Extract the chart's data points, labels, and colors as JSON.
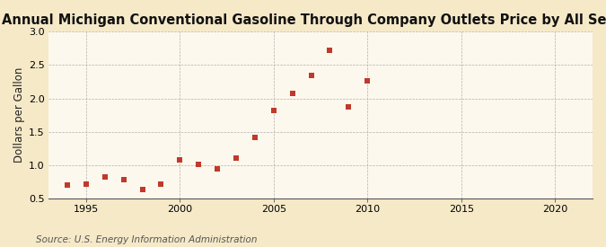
{
  "title": "Annual Michigan Conventional Gasoline Through Company Outlets Price by All Sellers",
  "ylabel": "Dollars per Gallon",
  "source": "Source: U.S. Energy Information Administration",
  "years": [
    1994,
    1995,
    1996,
    1997,
    1998,
    1999,
    2000,
    2001,
    2002,
    2003,
    2004,
    2005,
    2006,
    2007,
    2008,
    2009,
    2010
  ],
  "values": [
    0.7,
    0.72,
    0.82,
    0.79,
    0.64,
    0.72,
    1.08,
    1.01,
    0.95,
    1.11,
    1.42,
    1.82,
    2.07,
    2.35,
    2.72,
    1.88,
    2.27
  ],
  "marker_color": "#c0392b",
  "figure_background": "#f5e9c8",
  "plot_background": "#fdf8ed",
  "xlim": [
    1993,
    2022
  ],
  "ylim": [
    0.5,
    3.0
  ],
  "xticks": [
    1995,
    2000,
    2005,
    2010,
    2015,
    2020
  ],
  "yticks": [
    0.5,
    1.0,
    1.5,
    2.0,
    2.5,
    3.0
  ],
  "title_fontsize": 10.5,
  "label_fontsize": 8.5,
  "tick_fontsize": 8,
  "source_fontsize": 7.5,
  "grid_color": "#aaaaaa",
  "grid_style_h": "--",
  "grid_style_v": "--"
}
